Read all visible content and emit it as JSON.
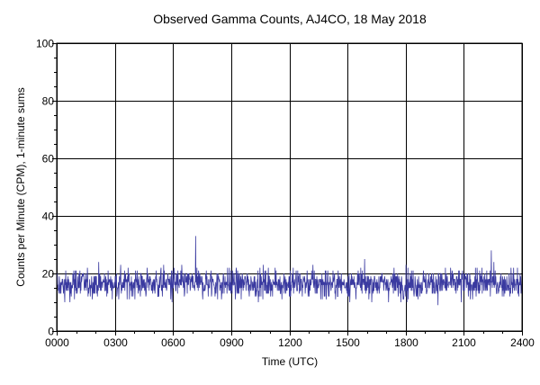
{
  "chart_data": {
    "type": "line",
    "title": "Observed Gamma Counts, AJ4CO, 18 May 2018",
    "xlabel": "Time (UTC)",
    "ylabel": "Counts per Minute (CPM), 1-minute sums",
    "xlim": [
      0,
      1440
    ],
    "ylim": [
      0,
      100
    ],
    "x_ticks": [
      {
        "value": 0,
        "label": "0000"
      },
      {
        "value": 180,
        "label": "0300"
      },
      {
        "value": 360,
        "label": "0600"
      },
      {
        "value": 540,
        "label": "0900"
      },
      {
        "value": 720,
        "label": "1200"
      },
      {
        "value": 900,
        "label": "1500"
      },
      {
        "value": 1080,
        "label": "1800"
      },
      {
        "value": 1260,
        "label": "2100"
      },
      {
        "value": 1440,
        "label": "2400"
      }
    ],
    "y_ticks": [
      {
        "value": 0,
        "label": "0"
      },
      {
        "value": 20,
        "label": "20"
      },
      {
        "value": 40,
        "label": "40"
      },
      {
        "value": 60,
        "label": "60"
      },
      {
        "value": 80,
        "label": "80"
      },
      {
        "value": 100,
        "label": "100"
      }
    ],
    "grid": true,
    "series": [
      {
        "color": "#3a3aa0",
        "x_start": 0,
        "x_step": 1,
        "count": 1441,
        "mean": 16.5,
        "min": 6,
        "max": 33
      }
    ]
  }
}
